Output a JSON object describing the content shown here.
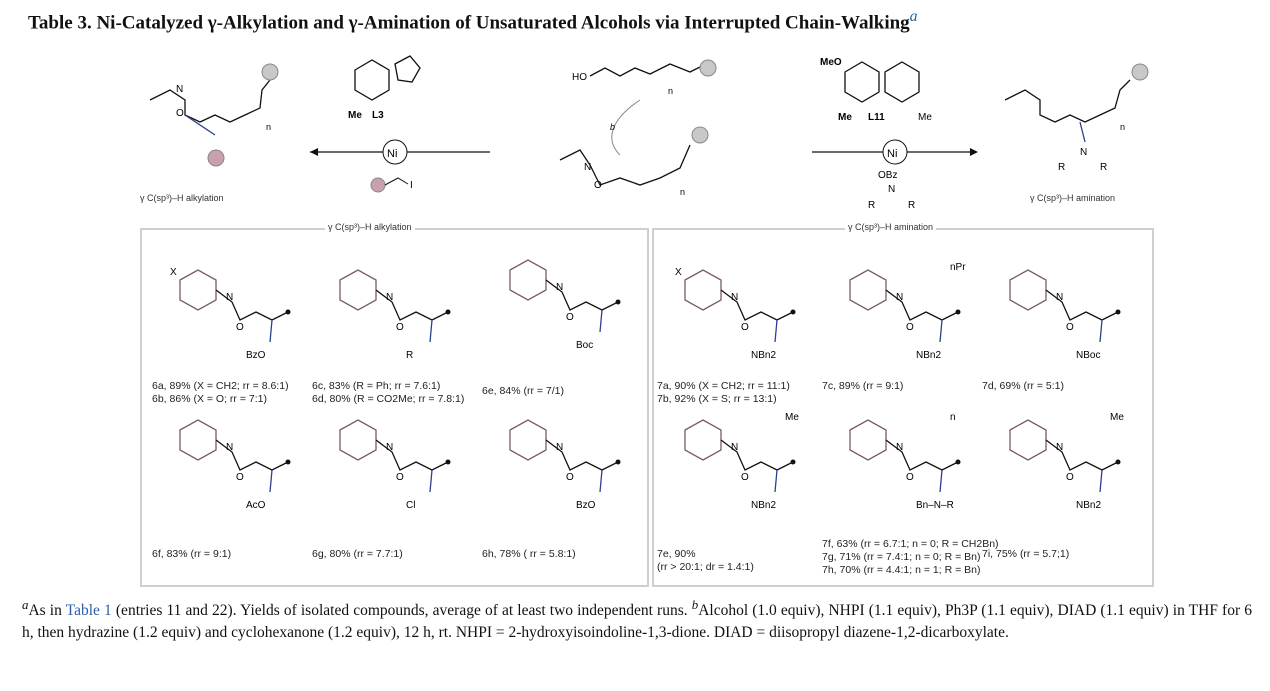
{
  "title": {
    "text": "Table 3. Ni-Catalyzed γ-Alkylation and γ-Amination of Unsaturated Alcohols via Interrupted Chain-Walking",
    "footnote_mark": "a"
  },
  "scheme": {
    "left_label": "γ C(sp³)–H alkylation",
    "right_label": "γ C(sp³)–H amination",
    "ligand_left": "L3",
    "ligand_right": "L11",
    "metal": "Ni",
    "substrate_ho": "HO",
    "n": "n",
    "b": "b",
    "me": "Me",
    "meo": "MeO",
    "reagent_amine": "OBz",
    "n_atom": "N",
    "r": "R",
    "o_atom": "O",
    "i_atom": "I"
  },
  "sections": {
    "alkylation": "γ C(sp³)–H alkylation",
    "amination": "γ C(sp³)–H amination"
  },
  "compounds": [
    {
      "id": "6ab",
      "sub": "X",
      "lines": [
        "6a, 89% (X = CH2;  rr = 8.6:1)",
        "6b, 86% (X = O; rr = 7:1)"
      ],
      "group": "BzO"
    },
    {
      "id": "6cd",
      "lines": [
        "6c, 83% (R = Ph;  rr = 7.6:1)",
        "6d, 80% (R = CO2Me; rr = 7.8:1)"
      ],
      "group": "R"
    },
    {
      "id": "6e",
      "lines": [
        "6e, 84% (rr = 7/1)"
      ],
      "group": "Boc"
    },
    {
      "id": "6f",
      "lines": [
        "6f, 83% (rr = 9:1)"
      ],
      "group": "AcO"
    },
    {
      "id": "6g",
      "lines": [
        "6g, 80% (rr = 7.7:1)"
      ],
      "group": "Cl"
    },
    {
      "id": "6h",
      "lines": [
        "6h, 78% ( rr = 5.8:1)"
      ],
      "group": "BzO"
    },
    {
      "id": "7ab",
      "sub": "X",
      "lines": [
        "7a, 90% (X = CH2;  rr = 11:1)",
        "7b, 92% (X = S; rr = 13:1)"
      ],
      "group": "NBn2"
    },
    {
      "id": "7c",
      "lines": [
        "7c, 89% (rr = 9:1)"
      ],
      "group": "NBn2",
      "extra": "nPr"
    },
    {
      "id": "7d",
      "lines": [
        "7d, 69% (rr = 5:1)"
      ],
      "group": "NBoc"
    },
    {
      "id": "7e",
      "lines": [
        "7e, 90%",
        "(rr > 20:1; dr = 1.4:1)"
      ],
      "group": "NBn2",
      "extra": "Me"
    },
    {
      "id": "7fgh",
      "lines": [
        "7f, 63% (rr = 6.7:1; n = 0; R = CH2Bn)",
        "7g, 71% (rr = 7.4:1; n = 0; R = Bn)",
        "7h, 70% (rr = 4.4:1; n = 1; R = Bn)"
      ],
      "group": "Bn–N–R",
      "extra": "n"
    },
    {
      "id": "7i",
      "lines": [
        "7i, 75% (rr = 5.7;1)"
      ],
      "group": "NBn2",
      "extra": "Me"
    }
  ],
  "footnote": {
    "a_mark": "a",
    "a_pre": "As in ",
    "a_link": "Table 1",
    "a_post": " (entries 11 and 22). Yields of isolated compounds, average of at least two independent runs. ",
    "b_mark": "b",
    "b_text": "Alcohol (1.0 equiv), NHPI (1.1 equiv), Ph3P (1.1 equiv), DIAD (1.1 equiv) in THF for 6 h, then hydrazine (1.2 equiv) and cyclohexanone (1.2 equiv), 12 h, rt. NHPI = 2-hydroxyisoindoline-1,3-dione. DIAD = diisopropyl diazene-1,2-dicarboxylate."
  },
  "colors": {
    "ring": "#7a5a6a",
    "blue": "#2a3f8f",
    "gray_ball": "#c8c8c8",
    "pink_ball": "#c9a0b0",
    "link": "#2b5ea8",
    "border": "#cfcfcf"
  }
}
